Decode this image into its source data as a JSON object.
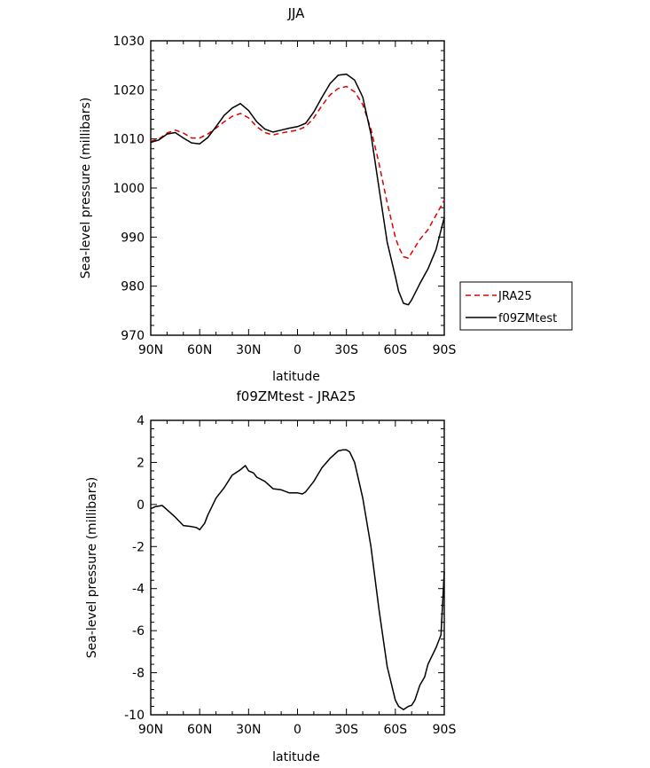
{
  "chart_data": [
    {
      "type": "line",
      "title": "JJA",
      "xlabel": "latitude",
      "ylabel": "Sea-level pressure (millibars)",
      "x_tick_labels": [
        "90N",
        "60N",
        "30N",
        "0",
        "30S",
        "60S",
        "90S"
      ],
      "x_tick_values": [
        90,
        60,
        30,
        0,
        -30,
        -60,
        -90
      ],
      "y_tick_labels": [
        "970",
        "980",
        "990",
        "1000",
        "1010",
        "1020",
        "1030"
      ],
      "y_tick_values": [
        970,
        980,
        990,
        1000,
        1010,
        1020,
        1030
      ],
      "xlim": [
        90,
        -90
      ],
      "ylim": [
        970,
        1030
      ],
      "grid": false,
      "legend": {
        "placement": "outside-right",
        "entries": [
          "JRA25",
          "f09ZMtest"
        ]
      },
      "series": [
        {
          "name": "JRA25",
          "color": "#dd0000",
          "dash": "dashed",
          "x": [
            90,
            85,
            80,
            75,
            70,
            65,
            60,
            55,
            50,
            45,
            40,
            35,
            30,
            25,
            20,
            15,
            10,
            5,
            0,
            -5,
            -10,
            -15,
            -20,
            -25,
            -30,
            -35,
            -40,
            -45,
            -50,
            -55,
            -60,
            -62,
            -65,
            -68,
            -70,
            -75,
            -80,
            -85,
            -90
          ],
          "values": [
            1009.5,
            1010,
            1011.2,
            1011.8,
            1011.2,
            1010.2,
            1010.2,
            1011,
            1012.2,
            1013.5,
            1014.6,
            1015.2,
            1014.3,
            1012.5,
            1011.3,
            1010.8,
            1011.2,
            1011.5,
            1011.8,
            1012.5,
            1014.3,
            1016.8,
            1019,
            1020.3,
            1020.7,
            1019.6,
            1017,
            1012,
            1005,
            997,
            990,
            988,
            986,
            985.7,
            986.8,
            989.5,
            991.5,
            994.5,
            997.5
          ]
        },
        {
          "name": "f09ZMtest",
          "color": "#000000",
          "dash": "solid",
          "x": [
            90,
            85,
            80,
            75,
            70,
            65,
            60,
            55,
            50,
            45,
            40,
            35,
            30,
            25,
            20,
            15,
            10,
            5,
            0,
            -5,
            -10,
            -15,
            -20,
            -25,
            -30,
            -35,
            -40,
            -45,
            -50,
            -55,
            -60,
            -62,
            -65,
            -68,
            -70,
            -75,
            -80,
            -85,
            -90
          ],
          "values": [
            1009.3,
            1009.8,
            1011,
            1011.3,
            1010.2,
            1009.2,
            1009,
            1010.3,
            1012.5,
            1014.8,
            1016.3,
            1017.2,
            1015.8,
            1013.5,
            1012,
            1011.4,
            1011.8,
            1012.2,
            1012.5,
            1013.2,
            1015.5,
            1018.5,
            1021.3,
            1023,
            1023.2,
            1022,
            1018.5,
            1011,
            1000,
            989,
            982,
            979,
            976.5,
            976.2,
            977.2,
            980.5,
            983.5,
            987.5,
            994
          ]
        }
      ]
    },
    {
      "type": "line",
      "title": "f09ZMtest - JRA25",
      "xlabel": "latitude",
      "ylabel": "Sea-level pressure (millibars)",
      "x_tick_labels": [
        "90N",
        "60N",
        "30N",
        "0",
        "30S",
        "60S",
        "90S"
      ],
      "x_tick_values": [
        90,
        60,
        30,
        0,
        -30,
        -60,
        -90
      ],
      "y_tick_labels": [
        "-10",
        "-8",
        "-6",
        "-4",
        "-2",
        "0",
        "2",
        "4"
      ],
      "y_tick_values": [
        -10,
        -8,
        -6,
        -4,
        -2,
        0,
        2,
        4
      ],
      "xlim": [
        90,
        -90
      ],
      "ylim": [
        -10,
        4
      ],
      "grid": false,
      "series": [
        {
          "color": "#000000",
          "dash": "solid",
          "x": [
            90,
            87,
            83,
            80,
            75,
            70,
            65,
            62,
            60,
            57,
            55,
            50,
            45,
            40,
            35,
            32,
            30,
            27,
            25,
            20,
            15,
            10,
            5,
            0,
            -3,
            -5,
            -10,
            -15,
            -20,
            -25,
            -28,
            -30,
            -32,
            -35,
            -40,
            -45,
            -50,
            -55,
            -60,
            -62,
            -65,
            -68,
            -70,
            -72,
            -75,
            -78,
            -80,
            -85,
            -88,
            -90
          ],
          "values": [
            -0.2,
            -0.1,
            -0.05,
            -0.25,
            -0.6,
            -1.0,
            -1.05,
            -1.1,
            -1.2,
            -0.9,
            -0.5,
            0.3,
            0.8,
            1.4,
            1.65,
            1.85,
            1.6,
            1.5,
            1.3,
            1.1,
            0.75,
            0.7,
            0.55,
            0.55,
            0.5,
            0.6,
            1.1,
            1.75,
            2.2,
            2.55,
            2.6,
            2.6,
            2.5,
            2.0,
            0.3,
            -2.0,
            -5.0,
            -7.7,
            -9.3,
            -9.6,
            -9.75,
            -9.6,
            -9.55,
            -9.3,
            -8.6,
            -8.2,
            -7.6,
            -6.8,
            -6.2,
            -3.2
          ]
        }
      ]
    }
  ]
}
